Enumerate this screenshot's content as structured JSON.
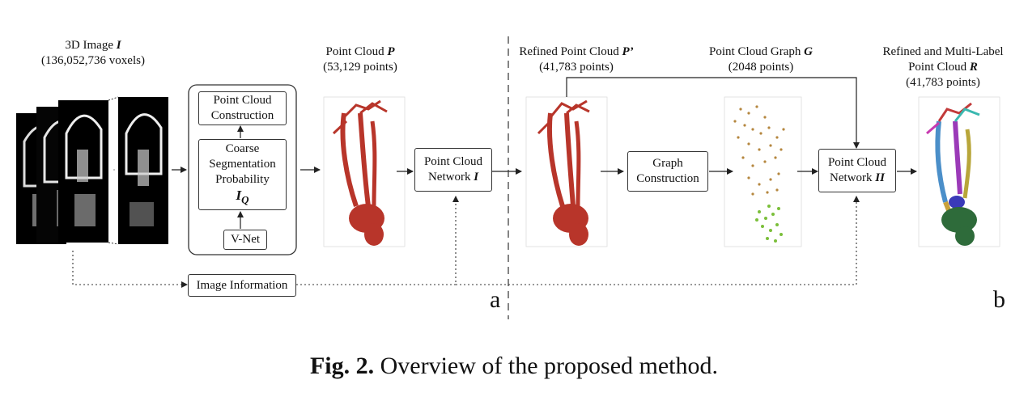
{
  "image_3d": {
    "title": "3D Image ",
    "symbol": "I",
    "count": "(136,052,736 voxels)"
  },
  "point_cloud_p": {
    "title": "Point Cloud ",
    "symbol": "P",
    "count": "(53,129 points)"
  },
  "refined_p": {
    "title": "Refined Point Cloud ",
    "symbol": "P’",
    "count": "(41,783 points)"
  },
  "graph_g": {
    "title": "Point Cloud Graph ",
    "symbol": "G",
    "count": "(2048 points)"
  },
  "refined_r": {
    "line1": "Refined and Multi-Label",
    "title": "Point Cloud ",
    "symbol": "R",
    "count": "(41,783 points)"
  },
  "boxes": {
    "pc_construction": [
      "Point Cloud",
      "Construction"
    ],
    "coarse": [
      "Coarse",
      "Segmentation",
      "Probability"
    ],
    "iq_main": "I",
    "iq_sub": "Q",
    "vnet": "V-Net",
    "net1_line1": "Point Cloud",
    "net1_line2": "Network ",
    "net1_symbol": "I",
    "graph_construction": [
      "Graph",
      "Construction"
    ],
    "net2_line1": "Point Cloud",
    "net2_line2": "Network ",
    "net2_symbol": "II",
    "image_info": "Image Information"
  },
  "panel_a": "a",
  "panel_b": "b",
  "caption": {
    "bold": "Fig. 2.",
    "text": " Overview of the proposed method."
  },
  "colors": {
    "red_cloud": "#b8352a",
    "green_cloud": "#7bbf3a",
    "brown_points": "#b5873f"
  }
}
